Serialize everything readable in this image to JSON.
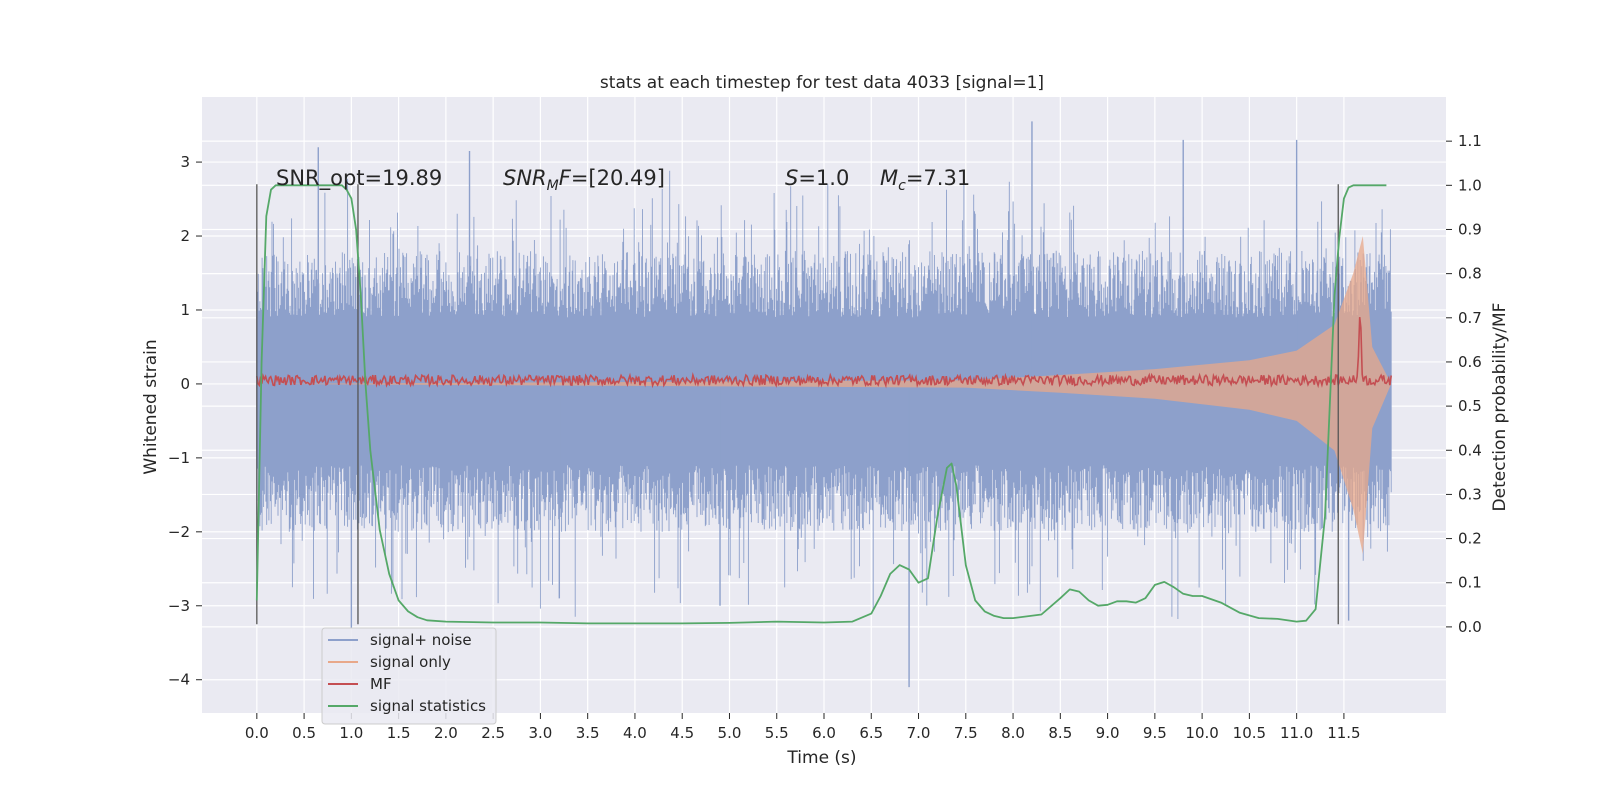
{
  "chart_data": {
    "type": "line",
    "title": "stats at each timestep for test data 4033 [signal=1]",
    "xlabel": "Time (s)",
    "ylabel": "Whitened strain",
    "ylabel_right": "Detection probability/MF",
    "xlim": [
      -0.58,
      12.58
    ],
    "ylim": [
      -4.45,
      3.88
    ],
    "ylim_right": [
      -0.195,
      1.2
    ],
    "x_ticks": [
      "0.0",
      "0.5",
      "1.0",
      "1.5",
      "2.0",
      "2.5",
      "3.0",
      "3.5",
      "4.0",
      "4.5",
      "5.0",
      "5.5",
      "6.0",
      "6.5",
      "7.0",
      "7.5",
      "8.0",
      "8.5",
      "9.0",
      "9.5",
      "10.0",
      "10.5",
      "11.0",
      "11.5"
    ],
    "y_ticks": [
      "3",
      "2",
      "1",
      "0",
      "−1",
      "−2",
      "−3",
      "−4"
    ],
    "y_ticks_right": [
      "1.1",
      "1.0",
      "0.9",
      "0.8",
      "0.7",
      "0.6",
      "0.5",
      "0.4",
      "0.3",
      "0.2",
      "0.1",
      "0.0"
    ],
    "annotations": [
      {
        "text": "SNR_opt=19.89",
        "x": 0.2,
        "y": 2.8
      },
      {
        "text": "SNR_MF=[20.49]",
        "x": 2.6,
        "y": 2.8
      },
      {
        "text": "S=1.0",
        "x": 5.6,
        "y": 2.8
      },
      {
        "text": "Mc=7.31",
        "x": 6.6,
        "y": 2.8
      }
    ],
    "vlines": [
      {
        "x": 0.0,
        "ymin": -3.25,
        "ymax": 2.7
      },
      {
        "x": 1.07,
        "ymin": -3.25,
        "ymax": 2.7
      },
      {
        "x": 11.44,
        "ymin": -3.25,
        "ymax": 2.7
      }
    ],
    "legend_position": "lower-left",
    "grid": true,
    "colors": {
      "noise": "#8da0cb",
      "signal": "#e8a88a",
      "mf": "#c44e52",
      "stat": "#55a868",
      "background": "#eaeaf2"
    },
    "series": [
      {
        "name": "signal+ noise",
        "x_range": [
          0.0,
          12.0
        ],
        "envelope_upper": 1.2,
        "envelope_lower": -1.3,
        "peak_max": 3.55,
        "peak_min": -4.1
      },
      {
        "name": "signal only",
        "x": [
          0.0,
          7.5,
          8.5,
          9.5,
          10.5,
          11.0,
          11.4,
          11.6,
          11.7,
          11.8,
          12.0
        ],
        "upper": [
          0.0,
          0.05,
          0.12,
          0.2,
          0.32,
          0.45,
          0.8,
          1.5,
          2.0,
          0.5,
          0.0
        ],
        "lower": [
          0.0,
          -0.05,
          -0.12,
          -0.2,
          -0.35,
          -0.5,
          -0.9,
          -1.7,
          -2.3,
          -0.6,
          0.0
        ]
      },
      {
        "name": "MF",
        "x_range": [
          0.0,
          12.0
        ],
        "baseline": 0.05,
        "peak": {
          "x": 11.67,
          "y": 1.0
        }
      },
      {
        "name": "signal statistics",
        "x": [
          0.0,
          0.05,
          0.1,
          0.15,
          0.2,
          0.3,
          0.5,
          0.7,
          0.9,
          0.95,
          1.0,
          1.05,
          1.1,
          1.15,
          1.2,
          1.3,
          1.4,
          1.5,
          1.6,
          1.7,
          1.8,
          2.0,
          2.5,
          3.0,
          3.5,
          4.0,
          4.5,
          5.0,
          5.5,
          6.0,
          6.3,
          6.5,
          6.6,
          6.7,
          6.8,
          6.9,
          7.0,
          7.1,
          7.2,
          7.3,
          7.35,
          7.4,
          7.5,
          7.6,
          7.7,
          7.8,
          7.9,
          8.0,
          8.3,
          8.5,
          8.6,
          8.7,
          8.8,
          8.9,
          9.0,
          9.1,
          9.2,
          9.3,
          9.4,
          9.5,
          9.6,
          9.7,
          9.8,
          9.9,
          10.0,
          10.2,
          10.4,
          10.6,
          10.8,
          11.0,
          11.1,
          11.2,
          11.3,
          11.4,
          11.45,
          11.5,
          11.55,
          11.6,
          11.7,
          11.8,
          11.9,
          11.95
        ],
        "y": [
          0.06,
          0.6,
          0.93,
          0.99,
          1.0,
          1.0,
          1.0,
          1.0,
          1.0,
          0.99,
          0.97,
          0.9,
          0.75,
          0.55,
          0.4,
          0.22,
          0.12,
          0.06,
          0.035,
          0.022,
          0.015,
          0.012,
          0.01,
          0.01,
          0.008,
          0.008,
          0.008,
          0.009,
          0.012,
          0.01,
          0.012,
          0.03,
          0.07,
          0.12,
          0.14,
          0.13,
          0.1,
          0.11,
          0.25,
          0.36,
          0.37,
          0.32,
          0.14,
          0.06,
          0.035,
          0.025,
          0.02,
          0.02,
          0.028,
          0.065,
          0.085,
          0.08,
          0.06,
          0.048,
          0.05,
          0.058,
          0.058,
          0.055,
          0.065,
          0.095,
          0.102,
          0.09,
          0.075,
          0.07,
          0.07,
          0.055,
          0.032,
          0.02,
          0.018,
          0.012,
          0.014,
          0.04,
          0.25,
          0.75,
          0.88,
          0.97,
          0.995,
          1.0,
          1.0,
          1.0,
          1.0,
          1.0
        ]
      }
    ]
  }
}
